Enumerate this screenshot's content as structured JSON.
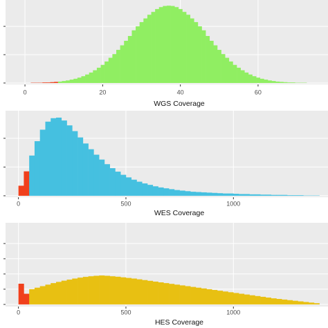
{
  "chart_data": [
    {
      "type": "histogram",
      "x_label": "WGS Coverage",
      "color": "#90ee62",
      "highlight": {
        "below": 9,
        "color": "#f0401c"
      },
      "bins": [
        0.5,
        1.5,
        2.5,
        3.5,
        4.5,
        5.5,
        6.5,
        7.5,
        8.5,
        9.5,
        10.5,
        11.5,
        12.5,
        13.5,
        14.5,
        15.5,
        16.5,
        17.5,
        18.5,
        19.5,
        20.5,
        21.5,
        22.5,
        23.5,
        24.5,
        25.5,
        26.5,
        27.5,
        28.5,
        29.5,
        30.5,
        31.5,
        32.5,
        33.5,
        34.5,
        35.5,
        36.5,
        37.5,
        38.5,
        39.5,
        40.5,
        41.5,
        42.5,
        43.5,
        44.5,
        45.5,
        46.5,
        47.5,
        48.5,
        49.5,
        50.5,
        51.5,
        52.5,
        53.5,
        54.5,
        55.5,
        56.5,
        57.5,
        58.5,
        59.5,
        60.5,
        61.5,
        62.5,
        63.5,
        64.5,
        65.5,
        66.5,
        67.5,
        68.5,
        69.5,
        70.5,
        71.5,
        72.5,
        73.5,
        74.5,
        75.5
      ],
      "values": [
        0,
        0.01,
        0.01,
        0.01,
        0.02,
        0.02,
        0.03,
        0.04,
        0.05,
        0.07,
        0.09,
        0.12,
        0.15,
        0.19,
        0.24,
        0.3,
        0.37,
        0.45,
        0.54,
        0.64,
        0.76,
        0.89,
        1.02,
        1.17,
        1.33,
        1.49,
        1.66,
        1.86,
        2.0,
        2.15,
        2.28,
        2.41,
        2.51,
        2.61,
        2.68,
        2.72,
        2.73,
        2.72,
        2.68,
        2.61,
        2.51,
        2.41,
        2.28,
        2.15,
        2.0,
        1.86,
        1.66,
        1.49,
        1.33,
        1.17,
        1.02,
        0.89,
        0.76,
        0.64,
        0.54,
        0.45,
        0.37,
        0.3,
        0.24,
        0.19,
        0.15,
        0.12,
        0.09,
        0.07,
        0.05,
        0.04,
        0.03,
        0.02,
        0.02,
        0.01,
        0.01,
        0.01,
        0,
        0,
        0
      ],
      "xlim": [
        -5,
        78
      ],
      "xticks": [
        0,
        20,
        40,
        60
      ],
      "ylim": [
        -0.05,
        2.93
      ],
      "yticks": [
        0,
        1,
        2
      ],
      "grid": true
    },
    {
      "type": "histogram",
      "x_label": "WES Coverage",
      "color": "#45c0e0",
      "highlight": {
        "below": 50,
        "color": "#f0401c"
      },
      "bins": [
        0,
        25,
        50,
        75,
        100,
        125,
        150,
        175,
        200,
        225,
        250,
        275,
        300,
        325,
        350,
        375,
        400,
        425,
        450,
        475,
        500,
        525,
        550,
        575,
        600,
        625,
        650,
        675,
        700,
        725,
        750,
        775,
        800,
        825,
        850,
        875,
        900,
        925,
        950,
        975,
        1000,
        1025,
        1050,
        1075,
        1100,
        1125,
        1150,
        1175,
        1200,
        1225,
        1250,
        1275,
        1300,
        1325,
        1350,
        1375,
        1400
      ],
      "values": [
        0.35,
        0.85,
        1.4,
        1.9,
        2.3,
        2.58,
        2.7,
        2.72,
        2.62,
        2.45,
        2.25,
        2.03,
        1.82,
        1.62,
        1.43,
        1.26,
        1.1,
        0.96,
        0.84,
        0.73,
        0.64,
        0.56,
        0.49,
        0.43,
        0.38,
        0.33,
        0.29,
        0.26,
        0.23,
        0.2,
        0.18,
        0.16,
        0.14,
        0.13,
        0.12,
        0.11,
        0.1,
        0.09,
        0.08,
        0.08,
        0.07,
        0.06,
        0.06,
        0.05,
        0.05,
        0.04,
        0.04,
        0.03,
        0.03,
        0.03,
        0.02,
        0.02,
        0.02,
        0.01,
        0.01,
        0.01
      ],
      "xlim": [
        -60,
        1440
      ],
      "xticks": [
        0,
        500,
        1000
      ],
      "ylim": [
        -0.05,
        2.96
      ],
      "yticks": [
        0,
        1,
        2
      ],
      "grid": true
    },
    {
      "type": "histogram",
      "x_label": "HES Coverage",
      "color": "#e8c012",
      "highlight": {
        "below": 50,
        "color": "#f0401c"
      },
      "bins": [
        0,
        25,
        50,
        75,
        100,
        125,
        150,
        175,
        200,
        225,
        250,
        275,
        300,
        325,
        350,
        375,
        400,
        425,
        450,
        475,
        500,
        525,
        550,
        575,
        600,
        625,
        650,
        675,
        700,
        725,
        750,
        775,
        800,
        825,
        850,
        875,
        900,
        925,
        950,
        975,
        1000,
        1025,
        1050,
        1075,
        1100,
        1125,
        1150,
        1175,
        1200,
        1225,
        1250,
        1275,
        1300,
        1325,
        1350,
        1375,
        1400
      ],
      "values": [
        1.36,
        0.7,
        1.0,
        1.1,
        1.2,
        1.3,
        1.4,
        1.48,
        1.56,
        1.63,
        1.7,
        1.76,
        1.81,
        1.85,
        1.88,
        1.9,
        1.88,
        1.85,
        1.82,
        1.78,
        1.74,
        1.7,
        1.65,
        1.6,
        1.55,
        1.5,
        1.45,
        1.4,
        1.35,
        1.3,
        1.25,
        1.2,
        1.15,
        1.1,
        1.05,
        1.0,
        0.95,
        0.9,
        0.85,
        0.8,
        0.75,
        0.7,
        0.65,
        0.6,
        0.55,
        0.5,
        0.45,
        0.4,
        0.36,
        0.32,
        0.28,
        0.24,
        0.2,
        0.16,
        0.12,
        0.08
      ],
      "xlim": [
        -60,
        1440
      ],
      "xticks": [
        0,
        500,
        1000
      ],
      "ylim": [
        -0.14,
        5.36
      ],
      "yticks": [
        0,
        1,
        2,
        3,
        4
      ],
      "grid": true
    }
  ]
}
